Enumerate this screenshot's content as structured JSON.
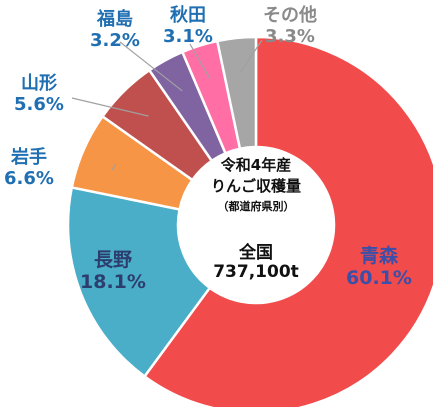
{
  "chart_data": {
    "type": "pie",
    "style": "donut",
    "title": "令和4年産りんご収穫量",
    "subtitle": "（都道府県別）",
    "total_label": "全国",
    "total_value": "737,100t",
    "slices": [
      {
        "name": "青森",
        "value": 60.1,
        "label": "60.1%",
        "color": "#f24b4b"
      },
      {
        "name": "長野",
        "value": 18.1,
        "label": "18.1%",
        "color": "#4aaec8"
      },
      {
        "name": "岩手",
        "value": 6.6,
        "label": "6.6%",
        "color": "#f79546"
      },
      {
        "name": "山形",
        "value": 5.6,
        "label": "5.6%",
        "color": "#c0504d"
      },
      {
        "name": "福島",
        "value": 3.2,
        "label": "3.2%",
        "color": "#8064a2"
      },
      {
        "name": "秋田",
        "value": 3.1,
        "label": "3.1%",
        "color": "#ff6fa6"
      },
      {
        "name": "その他",
        "value": 3.3,
        "label": "3.3%",
        "color": "#a6a6a6"
      }
    ]
  },
  "center": {
    "line1": "令和4年産",
    "line2": "りんご収穫量",
    "line3": "（都道府県別）",
    "line4": "全国",
    "line5": "737,100t"
  }
}
